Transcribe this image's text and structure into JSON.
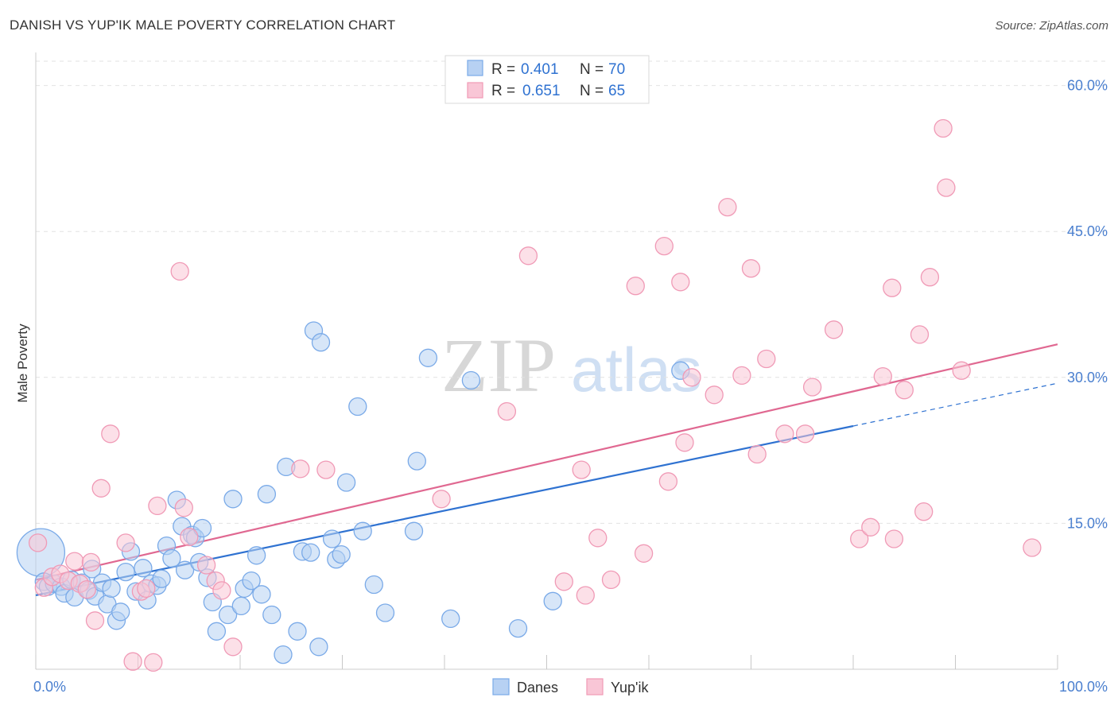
{
  "header": {
    "title": "DANISH VS YUP'IK MALE POVERTY CORRELATION CHART",
    "source": "Source: ZipAtlas.com"
  },
  "watermark": {
    "zip": "ZIP",
    "atlas": "atlas"
  },
  "colors": {
    "danes": "#7aaae8",
    "danes_fill": "#b7d1f3",
    "danes_line": "#2f72d1",
    "yupik": "#f09ab6",
    "yupik_fill": "#f9c6d6",
    "yupik_line": "#e06891",
    "tick_text": "#4a7fcf",
    "grid": "#e2e2e2"
  },
  "legend": {
    "rows": [
      {
        "r_label": "R = ",
        "r_value": "0.401",
        "n_label": "N = ",
        "n_value": "70"
      },
      {
        "r_label": "R = ",
        "r_value": "0.651",
        "n_label": "N = ",
        "n_value": "65"
      }
    ]
  },
  "chart_data": {
    "type": "scatter",
    "xlabel": "",
    "ylabel": "Male Poverty",
    "xlim": [
      0,
      100
    ],
    "ylim": [
      0,
      60
    ],
    "grid": true,
    "x_tick_labels": [
      "0.0%",
      "100.0%"
    ],
    "y_ticks": [
      15,
      30,
      45,
      60
    ],
    "y_tick_labels": [
      "15.0%",
      "30.0%",
      "45.0%",
      "60.0%"
    ],
    "legend_position": "top-center",
    "series": [
      {
        "name": "Danes",
        "r": 0.401,
        "n": 70,
        "trend": {
          "x0": 0,
          "y0": 7.6,
          "x1": 80,
          "y1": 25.0,
          "dashed_to_x": 100,
          "dashed_to_y": 29.4
        },
        "points": [
          [
            0.5,
            12.0,
            30
          ],
          [
            0.8,
            9.0,
            11
          ],
          [
            1.2,
            8.5,
            11
          ],
          [
            1.8,
            8.8,
            11
          ],
          [
            2.5,
            8.5,
            11
          ],
          [
            2.8,
            7.8,
            11
          ],
          [
            3.5,
            9.2,
            11
          ],
          [
            3.8,
            7.4,
            11
          ],
          [
            4.5,
            8.9,
            11
          ],
          [
            5.2,
            8.1,
            11
          ],
          [
            5.5,
            10.3,
            11
          ],
          [
            5.8,
            7.5,
            11
          ],
          [
            6.5,
            8.9,
            11
          ],
          [
            7.0,
            6.7,
            11
          ],
          [
            7.4,
            8.3,
            11
          ],
          [
            7.9,
            5.0,
            11
          ],
          [
            8.3,
            5.9,
            11
          ],
          [
            8.8,
            10.0,
            11
          ],
          [
            9.3,
            12.1,
            11
          ],
          [
            9.8,
            8.0,
            11
          ],
          [
            10.5,
            10.4,
            11
          ],
          [
            10.9,
            7.1,
            11
          ],
          [
            11.3,
            8.8,
            11
          ],
          [
            11.9,
            8.6,
            11
          ],
          [
            12.3,
            9.3,
            11
          ],
          [
            12.8,
            12.7,
            11
          ],
          [
            13.3,
            11.4,
            11
          ],
          [
            13.8,
            17.4,
            11
          ],
          [
            14.3,
            14.7,
            11
          ],
          [
            14.6,
            10.2,
            11
          ],
          [
            15.3,
            13.8,
            11
          ],
          [
            15.6,
            13.5,
            11
          ],
          [
            16.0,
            11.0,
            11
          ],
          [
            16.3,
            14.5,
            11
          ],
          [
            16.8,
            9.4,
            11
          ],
          [
            17.3,
            6.9,
            11
          ],
          [
            17.7,
            3.9,
            11
          ],
          [
            18.8,
            5.6,
            11
          ],
          [
            19.3,
            17.5,
            11
          ],
          [
            20.1,
            6.5,
            11
          ],
          [
            20.4,
            8.3,
            11
          ],
          [
            21.1,
            9.1,
            11
          ],
          [
            21.6,
            11.7,
            11
          ],
          [
            22.1,
            7.7,
            11
          ],
          [
            22.6,
            18.0,
            11
          ],
          [
            23.1,
            5.6,
            11
          ],
          [
            24.2,
            1.5,
            11
          ],
          [
            24.5,
            20.8,
            11
          ],
          [
            25.6,
            3.9,
            11
          ],
          [
            26.1,
            12.1,
            11
          ],
          [
            26.9,
            12.0,
            11
          ],
          [
            27.2,
            34.8,
            11
          ],
          [
            27.7,
            2.3,
            11
          ],
          [
            27.9,
            33.6,
            11
          ],
          [
            29.0,
            13.4,
            11
          ],
          [
            29.4,
            11.3,
            11
          ],
          [
            29.9,
            11.8,
            11
          ],
          [
            30.4,
            19.2,
            11
          ],
          [
            31.5,
            27.0,
            11
          ],
          [
            32.0,
            14.2,
            11
          ],
          [
            33.1,
            8.7,
            11
          ],
          [
            34.2,
            5.8,
            11
          ],
          [
            37.0,
            14.2,
            11
          ],
          [
            37.3,
            21.4,
            11
          ],
          [
            38.4,
            32.0,
            11
          ],
          [
            40.6,
            5.2,
            11
          ],
          [
            42.6,
            29.7,
            11
          ],
          [
            47.2,
            4.2,
            11
          ],
          [
            50.6,
            7.0,
            11
          ],
          [
            63.1,
            30.7,
            11
          ]
        ]
      },
      {
        "name": "Yup'ik",
        "r": 0.651,
        "n": 65,
        "trend": {
          "x0": 0,
          "y0": 9.2,
          "x1": 100,
          "y1": 33.4
        },
        "points": [
          [
            0.2,
            13.0,
            11
          ],
          [
            0.8,
            8.4,
            11
          ],
          [
            1.6,
            9.5,
            11
          ],
          [
            2.4,
            9.8,
            11
          ],
          [
            3.2,
            9.1,
            11
          ],
          [
            3.8,
            11.1,
            11
          ],
          [
            4.3,
            8.8,
            11
          ],
          [
            5.0,
            8.2,
            11
          ],
          [
            5.4,
            11.0,
            11
          ],
          [
            5.8,
            5.0,
            11
          ],
          [
            6.4,
            18.6,
            11
          ],
          [
            7.3,
            24.2,
            11
          ],
          [
            8.8,
            13.0,
            11
          ],
          [
            9.5,
            0.8,
            11
          ],
          [
            10.3,
            8.0,
            11
          ],
          [
            10.8,
            8.3,
            11
          ],
          [
            11.5,
            0.7,
            11
          ],
          [
            11.9,
            16.8,
            11
          ],
          [
            14.1,
            40.9,
            11
          ],
          [
            14.5,
            16.6,
            11
          ],
          [
            15.0,
            13.6,
            11
          ],
          [
            16.7,
            10.7,
            11
          ],
          [
            17.6,
            9.1,
            11
          ],
          [
            18.2,
            8.1,
            11
          ],
          [
            19.3,
            2.3,
            11
          ],
          [
            25.9,
            20.6,
            11
          ],
          [
            28.4,
            20.5,
            11
          ],
          [
            39.7,
            17.5,
            11
          ],
          [
            46.1,
            26.5,
            11
          ],
          [
            48.2,
            42.5,
            11
          ],
          [
            51.7,
            9.0,
            11
          ],
          [
            53.4,
            20.5,
            11
          ],
          [
            53.8,
            7.6,
            11
          ],
          [
            55.0,
            13.5,
            11
          ],
          [
            56.3,
            9.2,
            11
          ],
          [
            58.7,
            39.4,
            11
          ],
          [
            59.5,
            11.9,
            11
          ],
          [
            61.5,
            43.5,
            11
          ],
          [
            61.9,
            19.3,
            11
          ],
          [
            63.1,
            39.8,
            11
          ],
          [
            63.5,
            23.3,
            11
          ],
          [
            64.2,
            30.0,
            11
          ],
          [
            66.4,
            28.2,
            11
          ],
          [
            67.7,
            47.5,
            11
          ],
          [
            69.1,
            30.2,
            11
          ],
          [
            70.0,
            41.2,
            11
          ],
          [
            70.6,
            22.1,
            11
          ],
          [
            71.5,
            31.9,
            11
          ],
          [
            73.3,
            24.2,
            11
          ],
          [
            75.3,
            24.2,
            11
          ],
          [
            76.0,
            29.0,
            11
          ],
          [
            78.1,
            34.9,
            11
          ],
          [
            80.6,
            13.4,
            11
          ],
          [
            81.7,
            14.6,
            11
          ],
          [
            82.9,
            30.1,
            11
          ],
          [
            83.8,
            39.2,
            11
          ],
          [
            84.0,
            13.4,
            11
          ],
          [
            85.0,
            28.7,
            11
          ],
          [
            86.5,
            34.4,
            11
          ],
          [
            86.9,
            16.2,
            11
          ],
          [
            87.5,
            40.3,
            11
          ],
          [
            88.8,
            55.6,
            11
          ],
          [
            89.1,
            49.5,
            11
          ],
          [
            90.6,
            30.7,
            11
          ],
          [
            97.5,
            12.5,
            11
          ]
        ]
      }
    ]
  }
}
